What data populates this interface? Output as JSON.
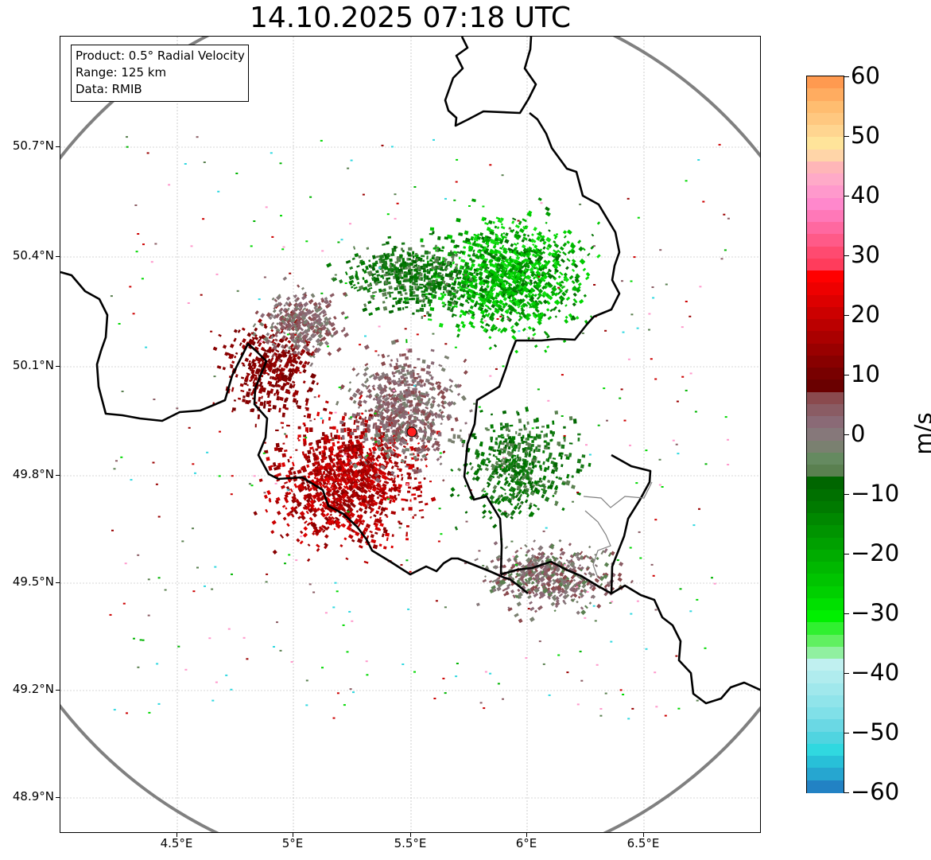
{
  "title": "14.10.2025 07:18 UTC",
  "info_box": {
    "product": "Product: 0.5° Radial Velocity",
    "range": "Range: 125 km",
    "data": "Data: RMIB"
  },
  "axes": {
    "lat_labels": [
      "50.7°N",
      "50.4°N",
      "50.1°N",
      "49.8°N",
      "49.5°N",
      "49.2°N",
      "48.9°N"
    ],
    "lon_labels": [
      "4.5°E",
      "5°E",
      "5.5°E",
      "6°E",
      "6.5°E"
    ]
  },
  "radar_site_color": "#ff2020",
  "range_ring_color": "#808080",
  "colorbar": {
    "unit": "m/s",
    "ticks": [
      "60",
      "50",
      "40",
      "30",
      "20",
      "10",
      "0",
      "−10",
      "−20",
      "−30",
      "−40",
      "−50",
      "−60"
    ],
    "colors_top_to_bottom": [
      "#ff9a50",
      "#ffac60",
      "#ffbd70",
      "#ffc880",
      "#ffd590",
      "#ffe49a",
      "#ffd5a8",
      "#ffb6b8",
      "#ffaac8",
      "#ff99cc",
      "#ff88cc",
      "#ff78b8",
      "#ff68a0",
      "#ff5a88",
      "#ff4a70",
      "#ff3c5c",
      "#ff0000",
      "#ee0000",
      "#dd0000",
      "#cc0000",
      "#bb0000",
      "#aa0000",
      "#990000",
      "#880000",
      "#780000",
      "#6a0000",
      "#8a4a4e",
      "#8a5c64",
      "#8a6a76",
      "#86787a",
      "#7a8070",
      "#658a60",
      "#5a8050",
      "#006600",
      "#007000",
      "#007a00",
      "#008800",
      "#009400",
      "#00a000",
      "#00ac00",
      "#00b800",
      "#00c400",
      "#00d000",
      "#00e000",
      "#00f000",
      "#30f030",
      "#60f060",
      "#90f0a0",
      "#c0f0f0",
      "#b0ecee",
      "#a0e8ec",
      "#90e4ea",
      "#80e0e8",
      "#6ad8e4",
      "#50d4e0",
      "#30d8e0",
      "#28c0d8",
      "#26a6d0",
      "#2282c4"
    ]
  }
}
